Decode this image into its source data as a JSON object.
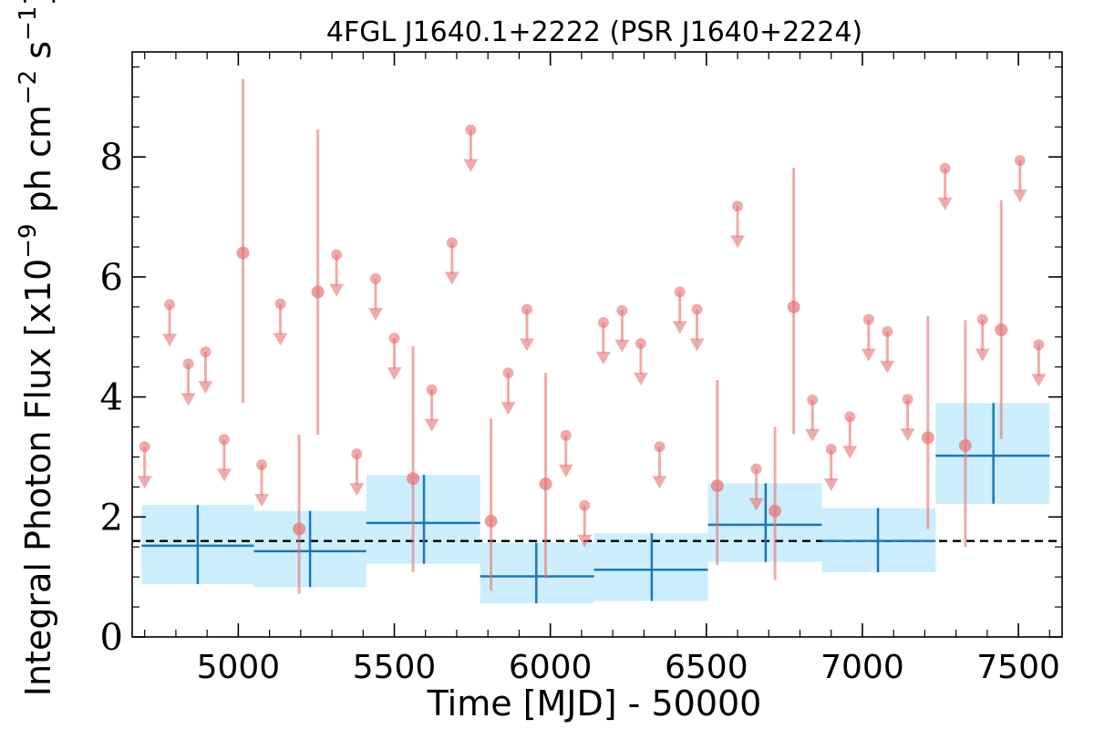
{
  "chart_data": {
    "type": "scatter",
    "title": "4FGL J1640.1+2222 (PSR J1640+2224)",
    "xlabel": "Time [MJD] - 50000",
    "ylabel_parts": {
      "base": "Integral Photon Flux [x10",
      "exp1": "−9",
      "mid": " ph cm",
      "exp2": "−2",
      "mid2": " s",
      "exp3": "−1",
      "end": "]"
    },
    "xlim": [
      4660,
      7640
    ],
    "ylim": [
      0,
      9.75
    ],
    "xticks": [
      5000,
      5500,
      6000,
      6500,
      7000,
      7500
    ],
    "yticks": [
      0,
      2,
      4,
      6,
      8
    ],
    "grid": false,
    "colors": {
      "points": "#e57373",
      "bins_line": "#1f77b4",
      "bins_fill": "#cdeefc",
      "mean_line": "#000000"
    },
    "mean_flux": 1.6,
    "binned": [
      {
        "x_start": 4690,
        "x_end": 5050,
        "x_center": 4870,
        "y": 1.52,
        "y_low": 0.88,
        "y_high": 2.2
      },
      {
        "x_start": 5050,
        "x_end": 5410,
        "x_center": 5230,
        "y": 1.43,
        "y_low": 0.83,
        "y_high": 2.1
      },
      {
        "x_start": 5410,
        "x_end": 5775,
        "x_center": 5595,
        "y": 1.9,
        "y_low": 1.22,
        "y_high": 2.7
      },
      {
        "x_start": 5775,
        "x_end": 6140,
        "x_center": 5955,
        "y": 1.01,
        "y_low": 0.56,
        "y_high": 1.57
      },
      {
        "x_start": 6140,
        "x_end": 6505,
        "x_center": 6325,
        "y": 1.12,
        "y_low": 0.6,
        "y_high": 1.73
      },
      {
        "x_start": 6505,
        "x_end": 6870,
        "x_center": 6690,
        "y": 1.87,
        "y_low": 1.25,
        "y_high": 2.56
      },
      {
        "x_start": 6870,
        "x_end": 7235,
        "x_center": 7050,
        "y": 1.6,
        "y_low": 1.08,
        "y_high": 2.15
      },
      {
        "x_start": 7235,
        "x_end": 7600,
        "x_center": 7420,
        "y": 3.02,
        "y_low": 2.22,
        "y_high": 3.9
      }
    ],
    "detections": [
      {
        "x": 5015,
        "y": 6.4,
        "y_low": 3.9,
        "y_high": 9.3
      },
      {
        "x": 5195,
        "y": 1.8,
        "y_low": 0.72,
        "y_high": 3.37
      },
      {
        "x": 5255,
        "y": 5.75,
        "y_low": 3.37,
        "y_high": 8.46
      },
      {
        "x": 5560,
        "y": 2.64,
        "y_low": 1.08,
        "y_high": 4.85
      },
      {
        "x": 5810,
        "y": 1.93,
        "y_low": 0.77,
        "y_high": 3.64
      },
      {
        "x": 5985,
        "y": 2.55,
        "y_low": 0.98,
        "y_high": 4.4
      },
      {
        "x": 6535,
        "y": 2.52,
        "y_low": 1.2,
        "y_high": 4.28
      },
      {
        "x": 6720,
        "y": 2.1,
        "y_low": 0.95,
        "y_high": 3.5
      },
      {
        "x": 6780,
        "y": 5.5,
        "y_low": 3.38,
        "y_high": 7.82
      },
      {
        "x": 7210,
        "y": 3.32,
        "y_low": 1.8,
        "y_high": 5.35
      },
      {
        "x": 7330,
        "y": 3.19,
        "y_low": 1.5,
        "y_high": 5.28
      },
      {
        "x": 7445,
        "y": 5.12,
        "y_low": 3.3,
        "y_high": 7.28
      }
    ],
    "upper_limits": [
      {
        "x": 4700,
        "y": 3.17
      },
      {
        "x": 4780,
        "y": 5.54
      },
      {
        "x": 4840,
        "y": 4.55
      },
      {
        "x": 4895,
        "y": 4.75
      },
      {
        "x": 4955,
        "y": 3.29
      },
      {
        "x": 5075,
        "y": 2.87
      },
      {
        "x": 5135,
        "y": 5.55
      },
      {
        "x": 5315,
        "y": 6.37
      },
      {
        "x": 5380,
        "y": 3.05
      },
      {
        "x": 5440,
        "y": 5.97
      },
      {
        "x": 5500,
        "y": 4.98
      },
      {
        "x": 5620,
        "y": 4.12
      },
      {
        "x": 5685,
        "y": 6.57
      },
      {
        "x": 5745,
        "y": 8.45
      },
      {
        "x": 5865,
        "y": 4.4
      },
      {
        "x": 5925,
        "y": 5.46
      },
      {
        "x": 6050,
        "y": 3.36
      },
      {
        "x": 6110,
        "y": 2.19
      },
      {
        "x": 6170,
        "y": 5.24
      },
      {
        "x": 6230,
        "y": 5.44
      },
      {
        "x": 6290,
        "y": 4.89
      },
      {
        "x": 6350,
        "y": 3.17
      },
      {
        "x": 6415,
        "y": 5.75
      },
      {
        "x": 6470,
        "y": 5.46
      },
      {
        "x": 6600,
        "y": 7.18
      },
      {
        "x": 6660,
        "y": 2.8
      },
      {
        "x": 6840,
        "y": 3.95
      },
      {
        "x": 6900,
        "y": 3.13
      },
      {
        "x": 6960,
        "y": 3.67
      },
      {
        "x": 7020,
        "y": 5.29
      },
      {
        "x": 7080,
        "y": 5.09
      },
      {
        "x": 7145,
        "y": 3.96
      },
      {
        "x": 7265,
        "y": 7.81
      },
      {
        "x": 7385,
        "y": 5.29
      },
      {
        "x": 7505,
        "y": 7.94
      },
      {
        "x": 7565,
        "y": 4.87
      }
    ]
  }
}
